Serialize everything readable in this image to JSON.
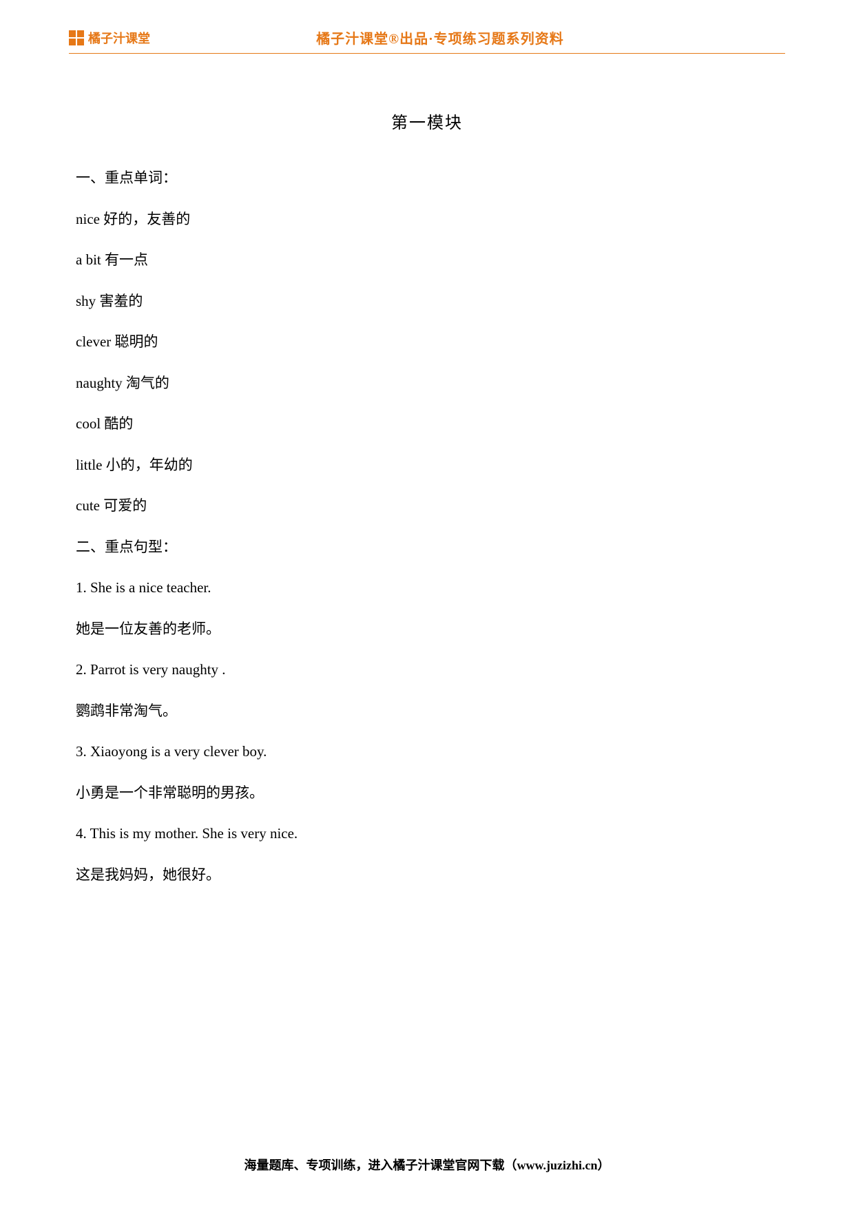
{
  "header": {
    "logo_text": "橘子汁课堂",
    "title": "橘子汁课堂®出品·专项练习题系列资料"
  },
  "module_title": "第一模块",
  "section1_heading": "一、重点单词：",
  "vocab": [
    "nice  好的，友善的",
    "a bit  有一点",
    "shy  害羞的",
    "clever  聪明的",
    "naughty  淘气的",
    "cool  酷的",
    "little  小的，年幼的",
    "cute  可爱的"
  ],
  "section2_heading": "二、重点句型：",
  "sentences": [
    {
      "en": "1. She is a nice teacher.",
      "zh": "她是一位友善的老师。"
    },
    {
      "en": "2. Parrot is very naughty .",
      "zh": "鹦鹉非常淘气。"
    },
    {
      "en": "3. Xiaoyong is a very  clever  boy.",
      "zh": "小勇是一个非常聪明的男孩。"
    },
    {
      "en": "4. This is my mother. She is very nice.",
      "zh": "这是我妈妈，她很好。"
    }
  ],
  "footer": "海量题库、专项训练，进入橘子汁课堂官网下载（www.juzizhi.cn）"
}
